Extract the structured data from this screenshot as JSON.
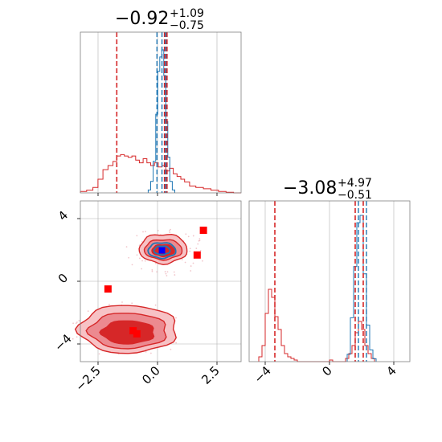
{
  "chart_data": [
    {
      "panel": "top-left",
      "type": "histogram",
      "title": {
        "value": "−0.92",
        "upper": "+1.09",
        "lower": "−0.75"
      },
      "xlim": [
        -3.2,
        3.2
      ],
      "grid": true,
      "colors": {
        "red": "#d62728",
        "blue": "#1f77b4"
      },
      "lines_red": [
        -1.75,
        0.15,
        0.25
      ],
      "lines_blue": [
        -0.15,
        0.05,
        0.2
      ],
      "hist_red": {
        "edges": [
          -3.2,
          -2.95,
          -2.7,
          -2.5,
          -2.3,
          -2.1,
          -1.9,
          -1.75,
          -1.6,
          -1.45,
          -1.3,
          -1.15,
          -1.0,
          -0.85,
          -0.7,
          -0.55,
          -0.4,
          -0.25,
          -0.1,
          0.05,
          0.2,
          0.35,
          0.5,
          0.65,
          0.8,
          0.95,
          1.15,
          1.4,
          1.7,
          2.0,
          2.3,
          2.6,
          2.9,
          3.2
        ],
        "values": [
          0.01,
          0.02,
          0.04,
          0.1,
          0.17,
          0.2,
          0.23,
          0.27,
          0.28,
          0.27,
          0.26,
          0.27,
          0.24,
          0.22,
          0.25,
          0.22,
          0.2,
          0.22,
          0.19,
          0.2,
          0.16,
          0.18,
          0.14,
          0.12,
          0.1,
          0.08,
          0.05,
          0.04,
          0.03,
          0.02,
          0.01,
          0.005,
          0.0
        ]
      },
      "hist_blue": {
        "edges": [
          -0.5,
          -0.4,
          -0.3,
          -0.2,
          -0.12,
          -0.04,
          0.04,
          0.12,
          0.2,
          0.28,
          0.36,
          0.46,
          0.56
        ],
        "values": [
          0.02,
          0.08,
          0.22,
          0.55,
          0.85,
          0.95,
          1.0,
          0.82,
          0.5,
          0.25,
          0.08,
          0.02
        ]
      }
    },
    {
      "panel": "bottom-left",
      "type": "scatter-contour",
      "xlim": [
        -3.2,
        3.2
      ],
      "ylim": [
        -5.2,
        5.2
      ],
      "xticks": [
        "−2.5",
        "0.0",
        "2.5"
      ],
      "yticks": [
        "−4",
        "0",
        "4"
      ],
      "grid": true,
      "markers_red": [
        [
          -2.1,
          -0.5
        ],
        [
          1.7,
          3.3
        ],
        [
          1.45,
          1.7
        ],
        [
          -1.1,
          -3.2
        ],
        [
          -0.95,
          -3.4
        ]
      ],
      "markers_blue": [
        [
          0.05,
          2.0
        ]
      ],
      "contours_red": [
        {
          "cx": -1.3,
          "cy": -3.1,
          "rx": 1.95,
          "ry": 1.55,
          "fill": "#f7c2c5"
        },
        {
          "cx": -1.3,
          "cy": -3.2,
          "rx": 1.55,
          "ry": 1.15,
          "fill": "#ec8a90"
        },
        {
          "cx": -1.3,
          "cy": -3.3,
          "rx": 1.05,
          "ry": 0.75,
          "fill": "#d62728"
        },
        {
          "cx": 0.1,
          "cy": 2.1,
          "rx": 0.95,
          "ry": 0.95,
          "fill": "#f7c2c5"
        },
        {
          "cx": 0.1,
          "cy": 2.05,
          "rx": 0.75,
          "ry": 0.65,
          "fill": "#ec8a90"
        },
        {
          "cx": 0.1,
          "cy": 2.0,
          "rx": 0.45,
          "ry": 0.38,
          "fill": "#d62728"
        }
      ],
      "contours_blue": [
        {
          "cx": 0.05,
          "cy": 2.0,
          "rx": 0.55,
          "ry": 0.5
        },
        {
          "cx": 0.05,
          "cy": 2.0,
          "rx": 0.32,
          "ry": 0.28
        }
      ]
    },
    {
      "panel": "bottom-right",
      "type": "histogram",
      "title": {
        "value": "−3.08",
        "upper": "+4.97",
        "lower": "−0.51"
      },
      "xlim": [
        -5.0,
        5.0
      ],
      "xticks": [
        "−4",
        "0",
        "4"
      ],
      "grid": true,
      "lines_red": [
        -3.4,
        1.6,
        2.1
      ],
      "lines_blue": [
        1.8,
        2.3
      ],
      "hist_red": {
        "edges": [
          -4.4,
          -4.2,
          -4.0,
          -3.8,
          -3.6,
          -3.4,
          -3.2,
          -3.0,
          -2.8,
          -2.6,
          -2.4,
          -2.2,
          -2.0,
          -1.5,
          0.0,
          0.2,
          1.0,
          1.2,
          1.4,
          1.6,
          1.8,
          2.0,
          2.2,
          2.4,
          2.6,
          2.8
        ],
        "values": [
          0.03,
          0.1,
          0.3,
          0.45,
          0.4,
          0.28,
          0.2,
          0.1,
          0.05,
          0.03,
          0.02,
          0.01,
          0.0,
          0.0,
          0.01,
          0.0,
          0.02,
          0.05,
          0.1,
          0.18,
          0.25,
          0.2,
          0.1,
          0.05,
          0.02
        ]
      },
      "hist_blue": {
        "edges": [
          1.1,
          1.3,
          1.5,
          1.7,
          1.9,
          2.1,
          2.3,
          2.5,
          2.7,
          2.9
        ],
        "values": [
          0.05,
          0.3,
          0.65,
          0.95,
          1.0,
          0.6,
          0.25,
          0.08,
          0.02
        ]
      }
    }
  ]
}
